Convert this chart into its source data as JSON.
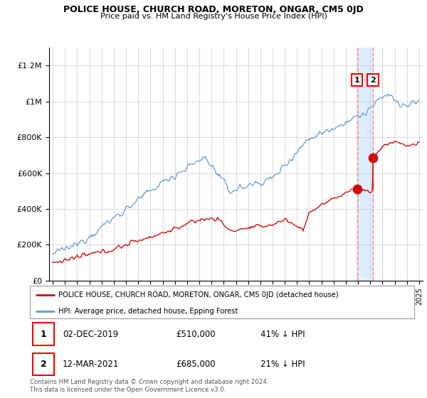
{
  "title": "POLICE HOUSE, CHURCH ROAD, MORETON, ONGAR, CM5 0JD",
  "subtitle": "Price paid vs. HM Land Registry's House Price Index (HPI)",
  "ylabel_ticks": [
    "£0",
    "£200K",
    "£400K",
    "£600K",
    "£800K",
    "£1M",
    "£1.2M"
  ],
  "ytick_values": [
    0,
    200000,
    400000,
    600000,
    800000,
    1000000,
    1200000
  ],
  "ylim": [
    0,
    1300000
  ],
  "xlim_start": 1994.7,
  "xlim_end": 2025.3,
  "hpi_color": "#6699cc",
  "hpi_color_light": "#aabbdd",
  "price_color": "#cc1111",
  "vline1_x": 2019.917,
  "vline2_x": 2021.208,
  "vline_color": "#ff8888",
  "vfill_color": "#ddeeff",
  "marker_color": "#cc1111",
  "sale1_y": 510000,
  "sale2_y": 685000,
  "ann1_label": "1",
  "ann2_label": "2",
  "ann_y": 1120000,
  "legend_label_red": "POLICE HOUSE, CHURCH ROAD, MORETON, ONGAR, CM5 0JD (detached house)",
  "legend_label_blue": "HPI: Average price, detached house, Epping Forest",
  "table_rows": [
    {
      "num": "1",
      "date": "02-DEC-2019",
      "price": "£510,000",
      "hpi": "41% ↓ HPI"
    },
    {
      "num": "2",
      "date": "12-MAR-2021",
      "price": "£685,000",
      "hpi": "21% ↓ HPI"
    }
  ],
  "footer": "Contains HM Land Registry data © Crown copyright and database right 2024.\nThis data is licensed under the Open Government Licence v3.0.",
  "background_color": "#ffffff",
  "grid_color": "#cccccc"
}
